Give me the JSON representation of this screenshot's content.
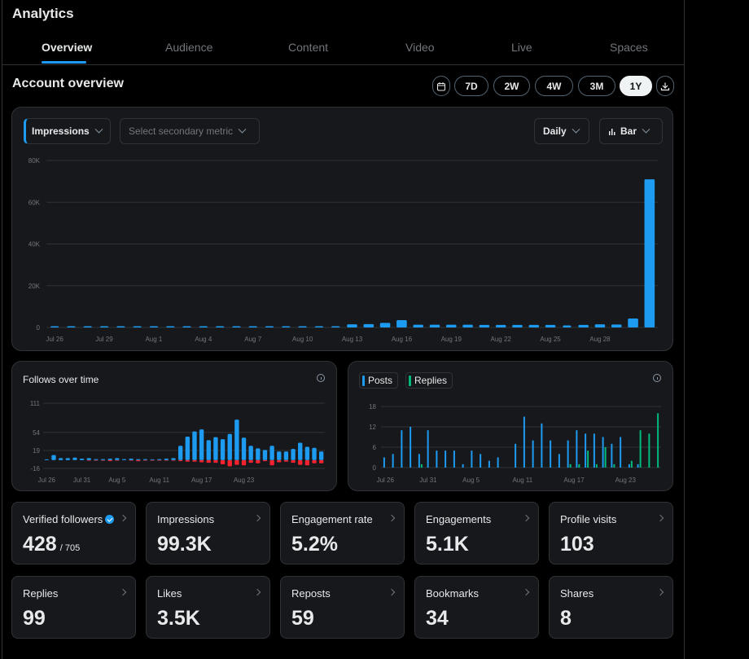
{
  "page": {
    "title": "Analytics",
    "tabs": [
      "Overview",
      "Audience",
      "Content",
      "Video",
      "Live",
      "Spaces"
    ],
    "active_tab": "Overview",
    "section_title": "Account overview",
    "ranges": [
      "7D",
      "2W",
      "4W",
      "3M",
      "1Y"
    ],
    "selected_range": "1Y",
    "icons": {
      "calendar": "calendar-icon",
      "download": "download-icon"
    }
  },
  "controls": {
    "primary_metric": "Impressions",
    "secondary_metric_placeholder": "Select secondary metric",
    "interval": "Daily",
    "chart_style": "Bar"
  },
  "colors": {
    "accent": "#1d9bf0",
    "negative": "#f4212e",
    "replies": "#00ba7c",
    "card_bg": "#16181c"
  },
  "chart_data": [
    {
      "type": "bar",
      "title": "Impressions",
      "x_tick_labels": [
        "Jul 26",
        "Jul 29",
        "Aug 1",
        "Aug 4",
        "Aug 7",
        "Aug 10",
        "Aug 13",
        "Aug 16",
        "Aug 19",
        "Aug 22",
        "Aug 25",
        "Aug 28"
      ],
      "y_tick_labels": [
        "80K",
        "60K",
        "40K",
        "20K",
        "0"
      ],
      "ylim": [
        0,
        80000
      ],
      "grid": true,
      "values": [
        0,
        0,
        0,
        0,
        0,
        0,
        0,
        0,
        0,
        0,
        0,
        0,
        0,
        0,
        0,
        0,
        0,
        200,
        1500,
        1600,
        2200,
        3500,
        1300,
        1300,
        1300,
        1300,
        1200,
        1200,
        1200,
        1200,
        1200,
        1000,
        1200,
        1500,
        1400,
        4300,
        71000
      ]
    },
    {
      "type": "bar",
      "title": "Follows over time",
      "x_tick_labels": [
        "Jul 26",
        "Jul 31",
        "Aug 5",
        "Aug 11",
        "Aug 17",
        "Aug 23"
      ],
      "y_tick_labels": [
        "111",
        "54",
        "19",
        "-16"
      ],
      "ylim": [
        -16,
        111
      ],
      "grid": true,
      "series": [
        {
          "name": "Follows",
          "values": [
            1,
            10,
            4,
            4,
            5,
            3,
            4,
            2,
            2,
            3,
            4,
            2,
            3,
            2,
            2,
            1,
            2,
            3,
            4,
            28,
            46,
            56,
            60,
            39,
            45,
            41,
            51,
            79,
            44,
            28,
            23,
            20,
            28,
            17,
            17,
            22,
            34,
            26,
            24,
            17
          ]
        },
        {
          "name": "Unfollows",
          "values": [
            0,
            0,
            0,
            0,
            0,
            0,
            -1,
            -1,
            -1,
            -2,
            -1,
            0,
            -1,
            -2,
            -1,
            -1,
            -1,
            -1,
            -1,
            -2,
            -3,
            -3,
            -4,
            -5,
            -5,
            -8,
            -12,
            -9,
            -10,
            -5,
            -6,
            -2,
            -10,
            -4,
            -3,
            -5,
            -9,
            -10,
            -6,
            -6
          ]
        }
      ]
    },
    {
      "type": "bar",
      "title": "",
      "x_tick_labels": [
        "Jul 26",
        "Jul 31",
        "Aug 5",
        "Aug 11",
        "Aug 17",
        "Aug 23"
      ],
      "y_tick_labels": [
        "18",
        "12",
        "6",
        "0"
      ],
      "ylim": [
        0,
        18
      ],
      "grid": true,
      "series": [
        {
          "name": "Posts",
          "values": [
            3,
            4,
            11,
            12,
            4,
            11,
            5,
            5,
            5,
            1,
            5,
            4,
            2,
            3,
            0,
            7,
            15,
            8,
            13,
            8,
            4,
            8,
            11,
            10,
            10,
            9,
            7,
            9,
            1,
            1,
            0,
            0
          ]
        },
        {
          "name": "Replies",
          "values": [
            0,
            0,
            0,
            0,
            1,
            0,
            0,
            0,
            0,
            0,
            0,
            0,
            0,
            0,
            0,
            0,
            0,
            0,
            0,
            0,
            0,
            1,
            1,
            5,
            1,
            6,
            1,
            0,
            2,
            11,
            10,
            16
          ]
        }
      ]
    }
  ],
  "charts_ui": {
    "impressions_ticks": [
      "Jul 26",
      "Jul 29",
      "Aug 1",
      "Aug 4",
      "Aug 7",
      "Aug 10",
      "Aug 13",
      "Aug 16",
      "Aug 19",
      "Aug 22",
      "Aug 25",
      "Aug 28"
    ],
    "follows_title": "Follows over time",
    "legend_posts": "Posts",
    "legend_replies": "Replies"
  },
  "stats": [
    {
      "label": "Verified followers",
      "value": "428",
      "sub": "/ 705",
      "verified": true
    },
    {
      "label": "Impressions",
      "value": "99.3K"
    },
    {
      "label": "Engagement rate",
      "value": "5.2%"
    },
    {
      "label": "Engagements",
      "value": "5.1K"
    },
    {
      "label": "Profile visits",
      "value": "103"
    },
    {
      "label": "Replies",
      "value": "99"
    },
    {
      "label": "Likes",
      "value": "3.5K"
    },
    {
      "label": "Reposts",
      "value": "59"
    },
    {
      "label": "Bookmarks",
      "value": "34"
    },
    {
      "label": "Shares",
      "value": "8"
    }
  ]
}
